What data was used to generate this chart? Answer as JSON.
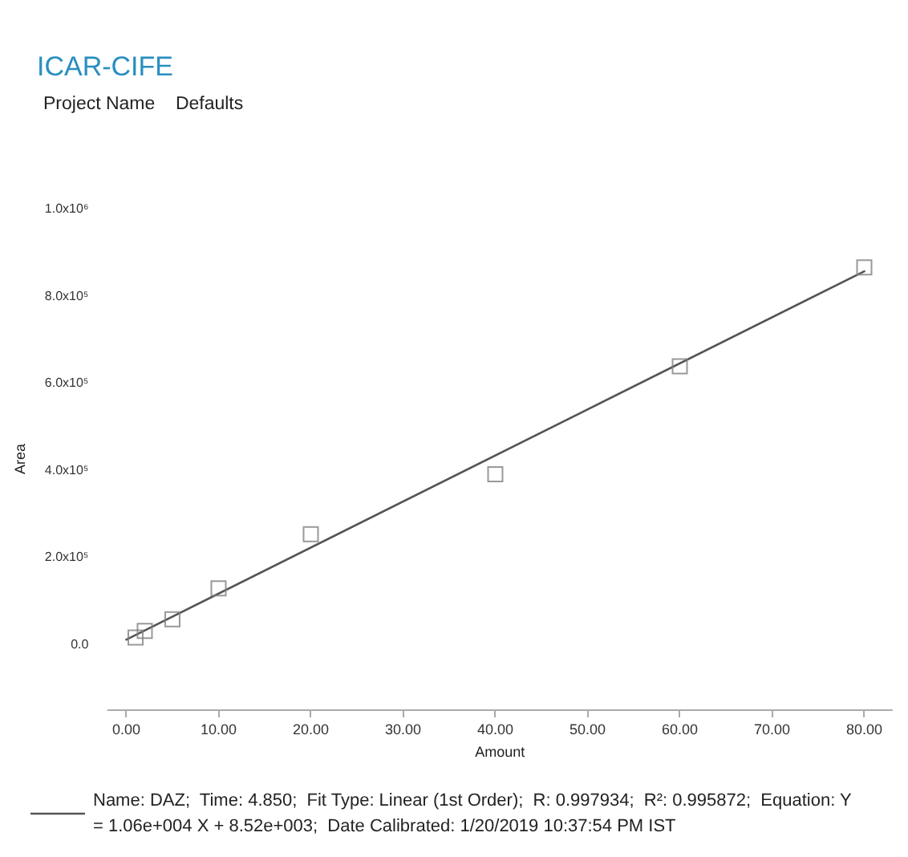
{
  "chart_data": {
    "type": "scatter",
    "title": "ICAR-CIFE",
    "subtitle": "Project Name    Defaults",
    "xlabel": "Amount",
    "ylabel": "Area",
    "xlim": [
      -2,
      83
    ],
    "ylim": [
      -150000,
      1000000
    ],
    "xticks": [
      {
        "value": 0,
        "label": "0.00"
      },
      {
        "value": 10,
        "label": "10.00"
      },
      {
        "value": 20,
        "label": "20.00"
      },
      {
        "value": 30,
        "label": "30.00"
      },
      {
        "value": 40,
        "label": "40.00"
      },
      {
        "value": 50,
        "label": "50.00"
      },
      {
        "value": 60,
        "label": "60.00"
      },
      {
        "value": 70,
        "label": "70.00"
      },
      {
        "value": 80,
        "label": "80.00"
      }
    ],
    "yticks": [
      {
        "value": 0,
        "label": "0.0"
      },
      {
        "value": 200000,
        "label": "2.0x10⁵"
      },
      {
        "value": 400000,
        "label": "4.0x10⁵"
      },
      {
        "value": 600000,
        "label": "6.0x10⁵"
      },
      {
        "value": 800000,
        "label": "8.0x10⁵"
      },
      {
        "value": 1000000,
        "label": "1.0x10⁶"
      }
    ],
    "grid": false,
    "legend": "bottom",
    "marker": "square",
    "series": [
      {
        "type": "scatter",
        "color": "#808080",
        "x": [
          1,
          2,
          5,
          10,
          20,
          40,
          60,
          80
        ],
        "values": [
          15000,
          30000,
          57000,
          128000,
          252000,
          390000,
          638000,
          865000
        ]
      },
      {
        "type": "line",
        "marker": "none",
        "color": "#555555",
        "name": "Name: DAZ;  Time: 4.850;  Fit Type: Linear (1st Order);  R: 0.997934;  R²: 0.995872;  Equation: Y = 1.06e+004 X + 8.52e+003;  Date Calibrated: 1/20/2019 10:37:54 PM IST",
        "x": [
          0,
          80
        ],
        "values": [
          10000,
          856000
        ]
      }
    ]
  }
}
